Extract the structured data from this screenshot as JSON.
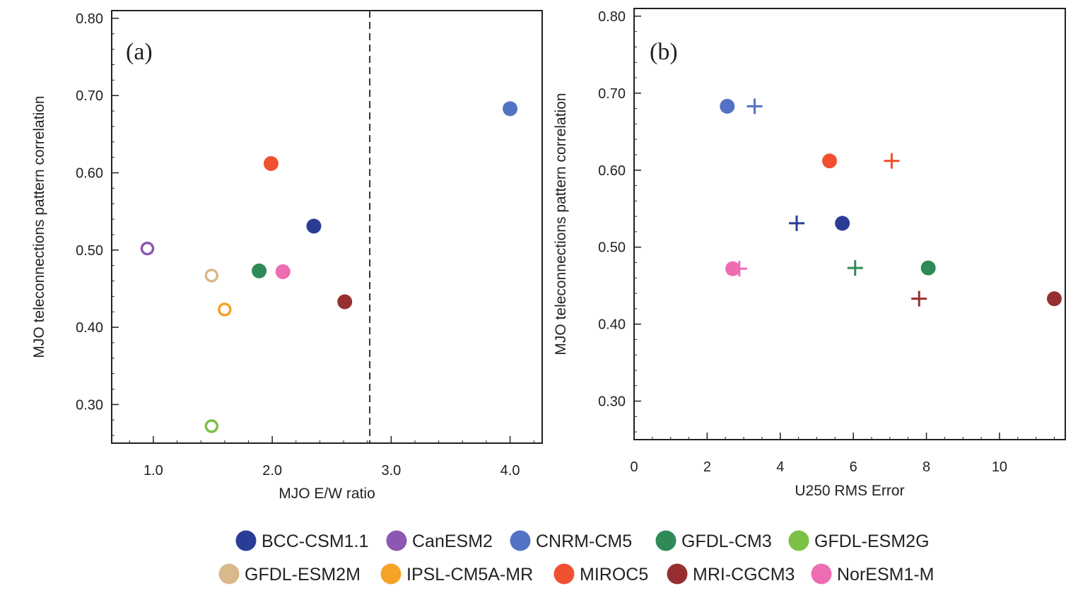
{
  "chart_data": [
    {
      "type": "scatter",
      "panel_label": "(a)",
      "xlabel": "MJO E/W ratio",
      "ylabel": "MJO teleconnections pattern correlation",
      "xlim": [
        0.65,
        4.27
      ],
      "ylim": [
        0.25,
        0.81
      ],
      "xticks": [
        1.0,
        2.0,
        3.0,
        4.0
      ],
      "xtick_labels": [
        "1.0",
        "2.0",
        "3.0",
        "4.0"
      ],
      "yticks": [
        0.3,
        0.4,
        0.5,
        0.6,
        0.7,
        0.8
      ],
      "ytick_labels": [
        "0.30",
        "0.40",
        "0.50",
        "0.60",
        "0.70",
        "0.80"
      ],
      "reference_line": {
        "x": 2.82,
        "style": "dashed"
      },
      "points": [
        {
          "model": "BCC-CSM1.1",
          "x": 2.35,
          "y": 0.531,
          "marker": "filled-circle"
        },
        {
          "model": "CanESM2",
          "x": 0.95,
          "y": 0.502,
          "marker": "open-circle"
        },
        {
          "model": "CNRM-CM5",
          "x": 4.0,
          "y": 0.683,
          "marker": "filled-circle"
        },
        {
          "model": "GFDL-CM3",
          "x": 1.89,
          "y": 0.473,
          "marker": "filled-circle"
        },
        {
          "model": "GFDL-ESM2G",
          "x": 1.49,
          "y": 0.272,
          "marker": "open-circle"
        },
        {
          "model": "GFDL-ESM2M",
          "x": 1.49,
          "y": 0.467,
          "marker": "open-circle"
        },
        {
          "model": "IPSL-CM5A-MR",
          "x": 1.6,
          "y": 0.423,
          "marker": "open-circle"
        },
        {
          "model": "MIROC5",
          "x": 1.99,
          "y": 0.612,
          "marker": "filled-circle"
        },
        {
          "model": "MRI-CGCM3",
          "x": 2.61,
          "y": 0.433,
          "marker": "filled-circle"
        },
        {
          "model": "NorESM1-M",
          "x": 2.09,
          "y": 0.472,
          "marker": "filled-circle"
        }
      ]
    },
    {
      "type": "scatter",
      "panel_label": "(b)",
      "xlabel": "U250 RMS Error",
      "ylabel": "MJO teleconnections pattern correlation",
      "xlim": [
        0,
        11.8
      ],
      "ylim": [
        0.25,
        0.81
      ],
      "xticks": [
        0,
        2,
        4,
        6,
        8,
        10
      ],
      "xtick_labels": [
        "0",
        "2",
        "4",
        "6",
        "8",
        "10"
      ],
      "yticks": [
        0.3,
        0.4,
        0.5,
        0.6,
        0.7,
        0.8
      ],
      "ytick_labels": [
        "0.30",
        "0.40",
        "0.50",
        "0.60",
        "0.70",
        "0.80"
      ],
      "points": [
        {
          "model": "CNRM-CM5",
          "x": 2.55,
          "y": 0.683,
          "marker": "filled-circle"
        },
        {
          "model": "CNRM-CM5",
          "x": 3.3,
          "y": 0.683,
          "marker": "plus"
        },
        {
          "model": "MIROC5",
          "x": 5.35,
          "y": 0.612,
          "marker": "filled-circle"
        },
        {
          "model": "MIROC5",
          "x": 7.05,
          "y": 0.612,
          "marker": "plus"
        },
        {
          "model": "BCC-CSM1.1",
          "x": 5.7,
          "y": 0.531,
          "marker": "filled-circle"
        },
        {
          "model": "BCC-CSM1.1",
          "x": 4.45,
          "y": 0.531,
          "marker": "plus"
        },
        {
          "model": "GFDL-CM3",
          "x": 8.05,
          "y": 0.473,
          "marker": "filled-circle"
        },
        {
          "model": "GFDL-CM3",
          "x": 6.05,
          "y": 0.473,
          "marker": "plus"
        },
        {
          "model": "NorESM1-M",
          "x": 2.7,
          "y": 0.472,
          "marker": "filled-circle"
        },
        {
          "model": "NorESM1-M",
          "x": 2.88,
          "y": 0.472,
          "marker": "plus"
        },
        {
          "model": "MRI-CGCM3",
          "x": 11.5,
          "y": 0.433,
          "marker": "filled-circle"
        },
        {
          "model": "MRI-CGCM3",
          "x": 7.8,
          "y": 0.433,
          "marker": "plus"
        }
      ]
    }
  ],
  "legend": {
    "placement": "bottom",
    "items": [
      {
        "name": "BCC-CSM1.1",
        "color": "#2a3d96"
      },
      {
        "name": "CanESM2",
        "color": "#8c57b3"
      },
      {
        "name": "CNRM-CM5",
        "color": "#5272c4"
      },
      {
        "name": "GFDL-CM3",
        "color": "#2e8b57"
      },
      {
        "name": "GFDL-ESM2G",
        "color": "#7cc045"
      },
      {
        "name": "GFDL-ESM2M",
        "color": "#d9b88a"
      },
      {
        "name": "IPSL-CM5A-MR",
        "color": "#f5a225"
      },
      {
        "name": "MIROC5",
        "color": "#ef5130"
      },
      {
        "name": "MRI-CGCM3",
        "color": "#972f30"
      },
      {
        "name": "NorESM1-M",
        "color": "#ee6cb2"
      }
    ]
  }
}
